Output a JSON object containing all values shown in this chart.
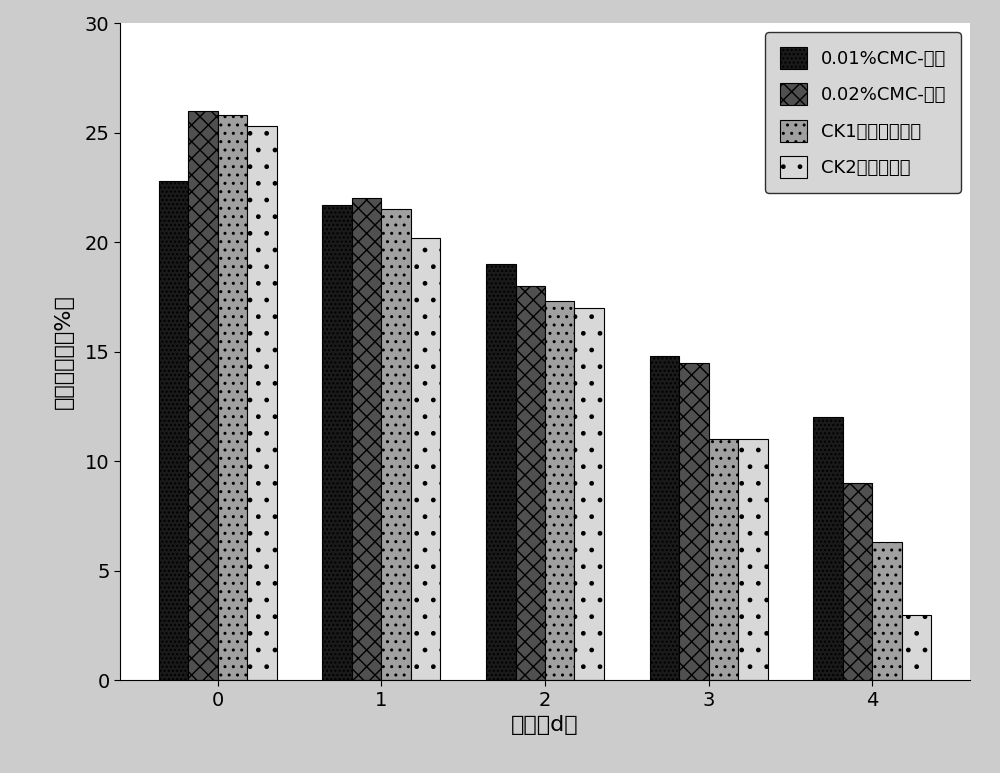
{
  "categories": [
    "0",
    "1",
    "2",
    "3",
    "4"
  ],
  "series": [
    {
      "label": "0.01%CMC-硞铵",
      "values": [
        22.8,
        21.7,
        19.0,
        14.8,
        12.0
      ],
      "facecolor": "#2a2a2a",
      "hatch": "...."
    },
    {
      "label": "0.02%CMC-硞铵",
      "values": [
        26.0,
        22.0,
        18.0,
        14.5,
        9.0
      ],
      "facecolor": "#555555",
      "hatch": "xx"
    },
    {
      "label": "CK1（播种小麦）",
      "values": [
        25.8,
        21.5,
        17.3,
        11.0,
        6.3
      ],
      "facecolor": "#aaaaaa",
      "hatch": "...."
    },
    {
      "label": "CK2（未播种）",
      "values": [
        25.3,
        20.2,
        17.0,
        11.0,
        3.0
      ],
      "facecolor": "#dddddd",
      "hatch": "...."
    }
  ],
  "xlabel": "天数（d）",
  "ylabel": "土壤含水率（%）",
  "ylim": [
    0,
    30
  ],
  "yticks": [
    0,
    5,
    10,
    15,
    20,
    25,
    30
  ],
  "outer_bg": "#cccccc",
  "plot_bg": "#ffffff",
  "bar_width": 0.18,
  "axis_fontsize": 16,
  "tick_fontsize": 14,
  "legend_fontsize": 13
}
